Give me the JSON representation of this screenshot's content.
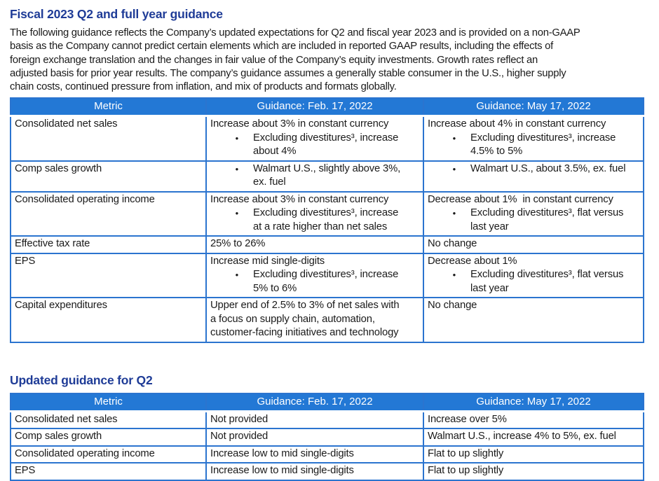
{
  "colors": {
    "header_bg": "#2378d5",
    "table_border": "#2b74cf",
    "heading": "#1f3c97",
    "header_divider": "#8ab6e8",
    "body_text": "#1a1a1a",
    "header_text": "#ffffff"
  },
  "section_full_year": {
    "title": "Fiscal 2023 Q2 and full year guidance",
    "paragraph": "The following guidance reflects the Company’s updated expectations for Q2 and fiscal year 2023 and is provided on a non-GAAP\nbasis as the Company cannot predict certain elements which are included in reported GAAP results, including the effects of\nforeign exchange translation and the changes in fair value of the Company’s equity investments. Growth rates reflect an\nadjusted basis for prior year results. The company’s guidance assumes a generally stable consumer in the U.S., higher supply\nchain costs, continued pressure from inflation, and mix of products and formats globally.",
    "table": {
      "headers": [
        "Metric",
        "Guidance: Feb. 17, 2022",
        "Guidance: May 17, 2022"
      ],
      "rows": [
        {
          "metric": "Consolidated net sales",
          "feb": [
            {
              "text": "Increase about 3% in constant currency",
              "bullet": false
            },
            {
              "text": "Excluding divestitures³, increase\nabout 4%",
              "bullet": true
            }
          ],
          "may": [
            {
              "text": "Increase about 4% in constant currency",
              "bullet": false
            },
            {
              "text": "Excluding divestitures³, increase\n4.5% to 5%",
              "bullet": true
            }
          ]
        },
        {
          "metric": "Comp sales growth",
          "feb": [
            {
              "text": "Walmart U.S., slightly above 3%,\nex. fuel",
              "bullet": true
            }
          ],
          "may": [
            {
              "text": "Walmart U.S., about 3.5%, ex. fuel",
              "bullet": true
            }
          ]
        },
        {
          "metric": "Consolidated operating income",
          "feb": [
            {
              "text": "Increase about 3% in constant currency",
              "bullet": false
            },
            {
              "text": "Excluding divestitures³, increase\nat a rate higher than net sales",
              "bullet": true
            }
          ],
          "may": [
            {
              "text": "Decrease about 1%  in constant currency",
              "bullet": false
            },
            {
              "text": "Excluding divestitures³, flat versus\nlast year",
              "bullet": true
            }
          ]
        },
        {
          "metric": "Effective tax rate",
          "feb": [
            {
              "text": "25% to 26%",
              "bullet": false
            }
          ],
          "may": [
            {
              "text": "No change",
              "bullet": false
            }
          ]
        },
        {
          "metric": "EPS",
          "feb": [
            {
              "text": "Increase mid single-digits",
              "bullet": false
            },
            {
              "text": "Excluding divestitures³, increase\n5% to 6%",
              "bullet": true
            }
          ],
          "may": [
            {
              "text": "Decrease about 1%",
              "bullet": false
            },
            {
              "text": "Excluding divestitures³, flat versus\nlast year",
              "bullet": true
            }
          ]
        },
        {
          "metric": "Capital expenditures",
          "feb": [
            {
              "text": "Upper end of 2.5% to 3% of net sales with\na focus on supply chain, automation,\ncustomer-facing initiatives and technology",
              "bullet": false
            }
          ],
          "may": [
            {
              "text": "No change",
              "bullet": false
            }
          ]
        }
      ]
    }
  },
  "section_q2": {
    "title": "Updated guidance for Q2",
    "table": {
      "headers": [
        "Metric",
        "Guidance: Feb. 17, 2022",
        "Guidance: May 17, 2022"
      ],
      "rows": [
        {
          "metric": "Consolidated net sales",
          "feb": [
            {
              "text": "Not provided",
              "bullet": false
            }
          ],
          "may": [
            {
              "text": "Increase over 5%",
              "bullet": false
            }
          ]
        },
        {
          "metric": "Comp sales growth",
          "feb": [
            {
              "text": "Not provided",
              "bullet": false
            }
          ],
          "may": [
            {
              "text": "Walmart U.S., increase 4% to 5%, ex. fuel",
              "bullet": false
            }
          ]
        },
        {
          "metric": "Consolidated operating income",
          "feb": [
            {
              "text": "Increase low to mid single-digits",
              "bullet": false
            }
          ],
          "may": [
            {
              "text": "Flat to up slightly",
              "bullet": false
            }
          ]
        },
        {
          "metric": "EPS",
          "feb": [
            {
              "text": "Increase low to mid single-digits",
              "bullet": false
            }
          ],
          "may": [
            {
              "text": "Flat to up slightly",
              "bullet": false
            }
          ]
        }
      ]
    }
  }
}
